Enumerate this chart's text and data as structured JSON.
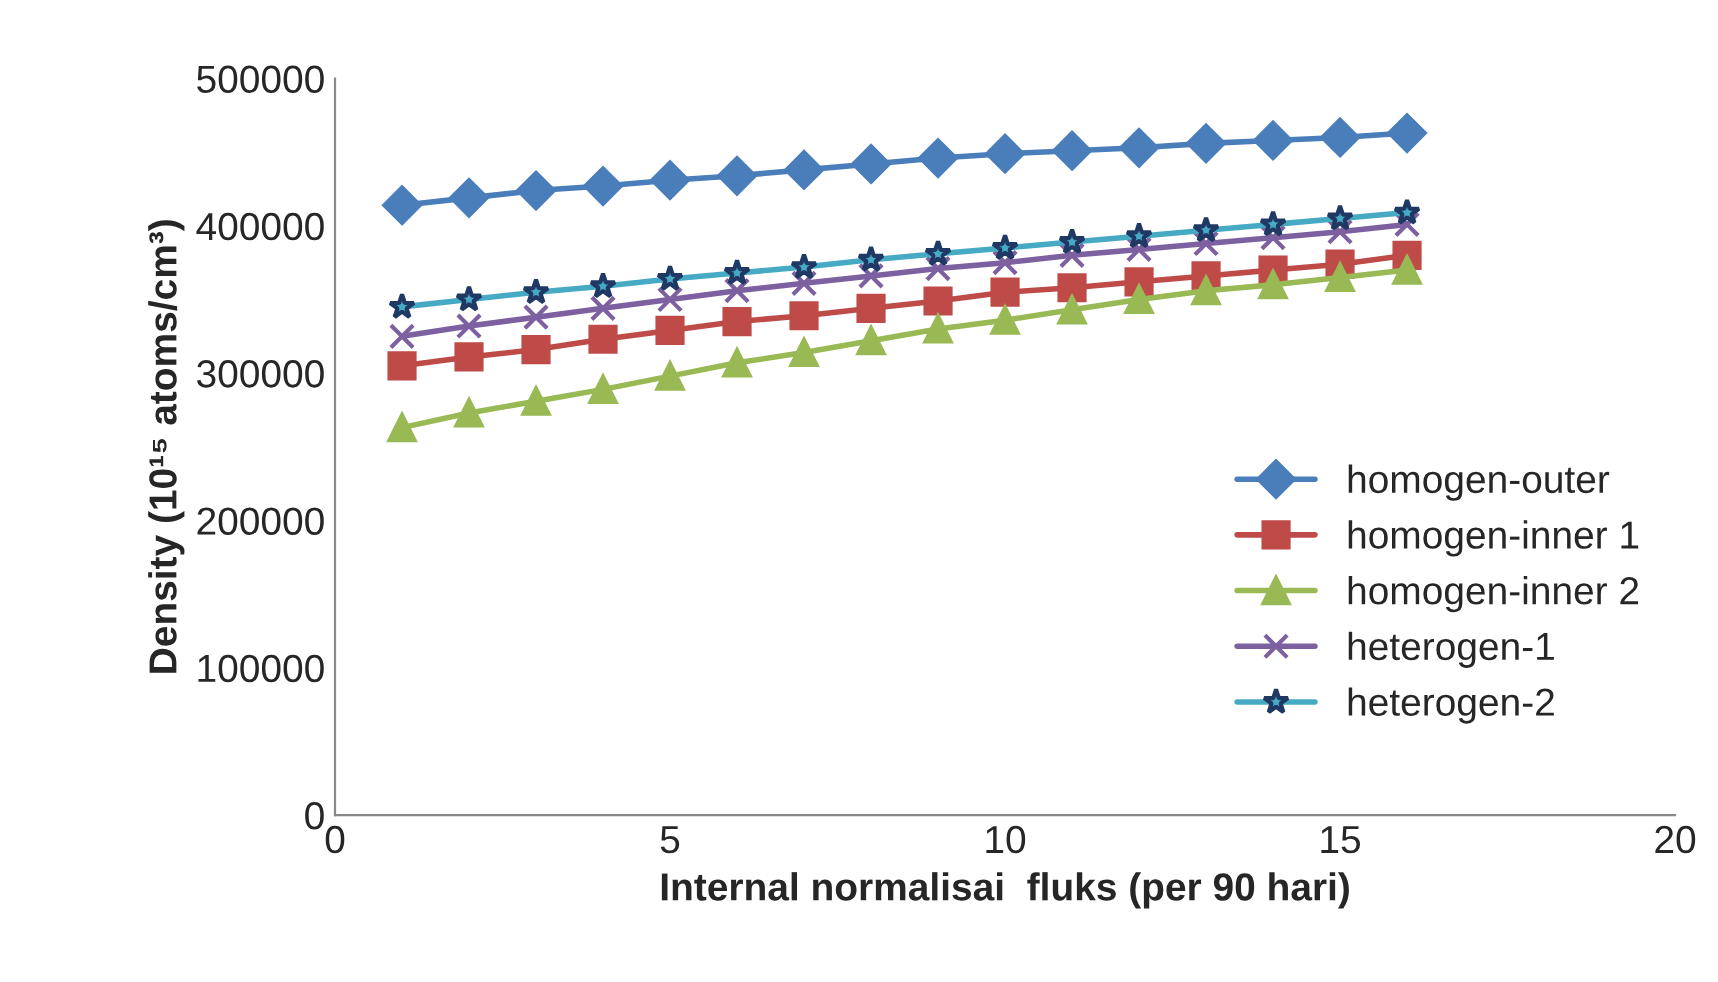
{
  "chart_data": {
    "type": "line",
    "xlabel": "Internal normalisai  fluks (per 90 hari)",
    "ylabel": "Density (10¹⁵ atoms/cm³)",
    "x": [
      1,
      2,
      3,
      4,
      5,
      6,
      7,
      8,
      9,
      10,
      11,
      12,
      13,
      14,
      15,
      16
    ],
    "series": [
      {
        "name": "homogen-outer",
        "color": "#4a7ebb",
        "marker": "diamond",
        "values": [
          414000,
          419000,
          424000,
          427000,
          431000,
          434000,
          438000,
          442000,
          446000,
          449000,
          451000,
          453000,
          456000,
          458000,
          460000,
          463000
        ]
      },
      {
        "name": "homogen-inner 1",
        "color": "#be4b48",
        "marker": "square",
        "values": [
          305000,
          311000,
          316000,
          323000,
          329000,
          335000,
          339000,
          344000,
          349000,
          355000,
          358000,
          362000,
          366000,
          370000,
          374000,
          380000
        ]
      },
      {
        "name": "homogen-inner 2",
        "color": "#98b954",
        "marker": "triangle",
        "values": [
          263000,
          273000,
          281000,
          289000,
          298000,
          307000,
          314000,
          322000,
          330000,
          336000,
          343000,
          350000,
          356000,
          360000,
          365000,
          370000
        ]
      },
      {
        "name": "heterogen-1",
        "color": "#7d60a0",
        "marker": "cross",
        "values": [
          325000,
          332000,
          338000,
          344000,
          350000,
          356000,
          361000,
          366000,
          371000,
          375000,
          380000,
          384000,
          388000,
          392000,
          396000,
          401000
        ]
      },
      {
        "name": "heterogen-2",
        "color": "#46aac5",
        "marker": "star",
        "values": [
          345000,
          350000,
          355000,
          359000,
          364000,
          368000,
          372000,
          377000,
          381000,
          385000,
          389000,
          393000,
          397000,
          401000,
          405000,
          409000
        ]
      }
    ],
    "xlim": [
      0,
      20
    ],
    "xticks": [
      0,
      5,
      10,
      15,
      20
    ],
    "ylim": [
      0,
      500000
    ],
    "yticks": [
      0,
      100000,
      200000,
      300000,
      400000,
      500000
    ],
    "grid": false,
    "legend": "right",
    "line_style": "solid"
  }
}
